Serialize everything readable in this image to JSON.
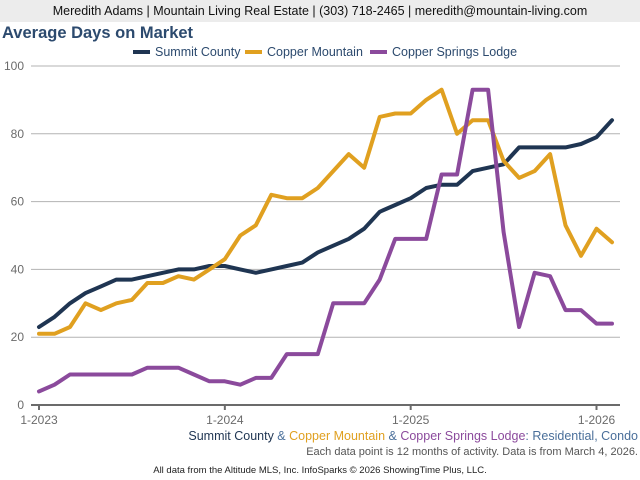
{
  "header": {
    "contact_line": "Meredith Adams | Mountain Living Real Estate | (303) 718-2465 | meredith@mountain-living.com"
  },
  "colors": {
    "summit": "#1f3552",
    "copper_mountain": "#e0a020",
    "copper_springs": "#8b4a9c",
    "title": "#2c4a6e",
    "subtitle_sep": "#4a6f9a"
  },
  "chart_data": {
    "type": "line",
    "title": "Average Days on Market",
    "xlabel": "",
    "ylabel": "",
    "ylim": [
      0,
      100
    ],
    "yticks": [
      "0",
      "20",
      "40",
      "60",
      "80",
      "100"
    ],
    "xtick_labels": [
      "1-2023",
      "1-2024",
      "1-2025",
      "1-2026"
    ],
    "grid": true,
    "legend_position": "top-center",
    "x": [
      "1-2023",
      "2-2023",
      "3-2023",
      "4-2023",
      "5-2023",
      "6-2023",
      "7-2023",
      "8-2023",
      "9-2023",
      "10-2023",
      "11-2023",
      "12-2023",
      "1-2024",
      "2-2024",
      "3-2024",
      "4-2024",
      "5-2024",
      "6-2024",
      "7-2024",
      "8-2024",
      "9-2024",
      "10-2024",
      "11-2024",
      "12-2024",
      "1-2025",
      "2-2025",
      "3-2025",
      "4-2025",
      "5-2025",
      "6-2025",
      "7-2025",
      "8-2025",
      "9-2025",
      "10-2025",
      "11-2025",
      "12-2025",
      "1-2026",
      "2-2026"
    ],
    "series": [
      {
        "name": "Summit County",
        "color_key": "summit",
        "values": [
          23,
          26,
          30,
          33,
          35,
          37,
          37,
          38,
          39,
          40,
          40,
          41,
          41,
          40,
          39,
          40,
          41,
          42,
          45,
          47,
          49,
          52,
          57,
          59,
          61,
          64,
          65,
          65,
          69,
          70,
          71,
          76,
          76,
          76,
          76,
          77,
          79,
          84
        ]
      },
      {
        "name": "Copper Mountain",
        "color_key": "copper_mountain",
        "values": [
          21,
          21,
          23,
          30,
          28,
          30,
          31,
          36,
          36,
          38,
          37,
          40,
          43,
          50,
          53,
          62,
          61,
          61,
          64,
          69,
          74,
          70,
          85,
          86,
          86,
          90,
          93,
          80,
          84,
          84,
          72,
          67,
          69,
          74,
          53,
          44,
          52,
          48
        ]
      },
      {
        "name": "Copper Springs Lodge",
        "color_key": "copper_springs",
        "values": [
          4,
          6,
          9,
          9,
          9,
          9,
          9,
          11,
          11,
          11,
          9,
          7,
          7,
          6,
          8,
          8,
          15,
          15,
          15,
          30,
          30,
          30,
          37,
          49,
          49,
          49,
          68,
          68,
          93,
          93,
          51,
          23,
          39,
          38,
          28,
          28,
          24,
          24
        ]
      }
    ]
  },
  "subtitle": {
    "part1": "Summit County",
    "sep1": " & ",
    "part2": "Copper Mountain",
    "sep2": " & ",
    "part3": "Copper Springs Lodge",
    "suffix": ": Residential, Condo"
  },
  "note": "Each data point is 12 months of activity. Data is from March 4, 2026.",
  "footer": "All data from the Altitude MLS, Inc. InfoSparks © 2026 ShowingTime Plus, LLC."
}
